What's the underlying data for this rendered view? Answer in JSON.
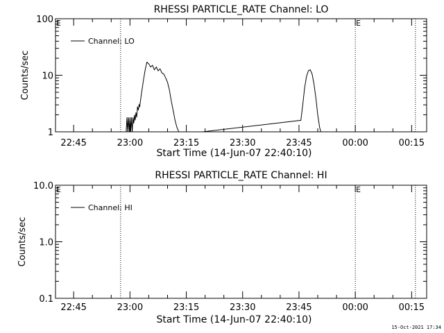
{
  "footer": {
    "timestamp": "15-Oct-2021 17:34"
  },
  "chart_data": [
    {
      "type": "line",
      "title": "RHESSI PARTICLE_RATE Channel: LO",
      "xlabel": "Start Time (14-Jun-07 22:40:10)",
      "ylabel": "Counts/sec",
      "yscale": "log",
      "ylim": [
        1,
        100
      ],
      "xlim": [
        "22:40:10",
        "00:19:00"
      ],
      "y_tick_labels": [
        "1",
        "10",
        "100"
      ],
      "y_tick_values": [
        1,
        10,
        100
      ],
      "x_tick_labels": [
        "22:45",
        "23:00",
        "23:15",
        "23:30",
        "23:45",
        "00:00",
        "00:15"
      ],
      "event_marks": [
        {
          "time": "22:57:30",
          "label": ""
        },
        {
          "time": "00:00:00",
          "label": "E"
        },
        {
          "time": "00:16:00",
          "label": ""
        }
      ],
      "corner_label": "E",
      "legend": {
        "entries": [
          "Channel: LO"
        ],
        "placement": "top-left"
      },
      "series": [
        {
          "name": "Channel: LO",
          "x": [
            "22:59:00",
            "22:59:12",
            "22:59:24",
            "22:59:36",
            "22:59:48",
            "23:00:00",
            "23:00:12",
            "23:00:24",
            "23:00:36",
            "23:00:48",
            "23:01:00",
            "23:01:12",
            "23:01:24",
            "23:01:36",
            "23:01:48",
            "23:02:00",
            "23:02:12",
            "23:02:24",
            "23:02:36",
            "23:03:00",
            "23:03:30",
            "23:04:00",
            "23:04:30",
            "23:05:00",
            "23:05:30",
            "23:06:00",
            "23:06:30",
            "23:07:00",
            "23:07:30",
            "23:08:00",
            "23:08:30",
            "23:09:00",
            "23:09:30",
            "23:10:00",
            "23:10:30",
            "23:11:00",
            "23:11:30",
            "23:12:00",
            "23:12:30",
            "23:13:00",
            "23:13:30",
            "23:45:30",
            "23:46:00",
            "23:46:30",
            "23:47:00",
            "23:47:30",
            "23:48:00",
            "23:48:30",
            "23:49:00",
            "23:49:30",
            "23:50:00",
            "23:50:30",
            "23:51:00"
          ],
          "y": [
            1.0,
            1.8,
            1.0,
            1.8,
            1.0,
            1.8,
            1.0,
            1.8,
            1.0,
            1.8,
            1.4,
            2.0,
            1.6,
            2.2,
            1.8,
            2.8,
            2.4,
            3.0,
            2.8,
            4.5,
            7.5,
            12.0,
            17.0,
            16.0,
            14.0,
            15.0,
            12.5,
            14.0,
            12.0,
            13.0,
            11.0,
            10.5,
            9.0,
            7.5,
            5.5,
            3.5,
            2.4,
            1.6,
            1.2,
            1.0,
            0.9,
            1.6,
            3.0,
            6.0,
            9.5,
            12.0,
            12.5,
            10.5,
            7.0,
            4.0,
            2.0,
            1.2,
            0.9
          ]
        }
      ]
    },
    {
      "type": "line",
      "title": "RHESSI PARTICLE_RATE Channel: HI",
      "xlabel": "Start Time (14-Jun-07 22:40:10)",
      "ylabel": "Counts/sec",
      "yscale": "log",
      "ylim": [
        0.1,
        10
      ],
      "xlim": [
        "22:40:10",
        "00:19:00"
      ],
      "y_tick_labels": [
        "0.1",
        "1.0",
        "10.0"
      ],
      "y_tick_values": [
        0.1,
        1,
        10
      ],
      "x_tick_labels": [
        "22:45",
        "23:00",
        "23:15",
        "23:30",
        "23:45",
        "00:00",
        "00:15"
      ],
      "event_marks": [
        {
          "time": "22:57:30",
          "label": ""
        },
        {
          "time": "00:00:00",
          "label": "E"
        },
        {
          "time": "00:16:00",
          "label": ""
        }
      ],
      "corner_label": "E",
      "legend": {
        "entries": [
          "Channel: HI"
        ],
        "placement": "top-left"
      },
      "series": [
        {
          "name": "Channel: HI",
          "x": [],
          "y": []
        }
      ]
    }
  ]
}
